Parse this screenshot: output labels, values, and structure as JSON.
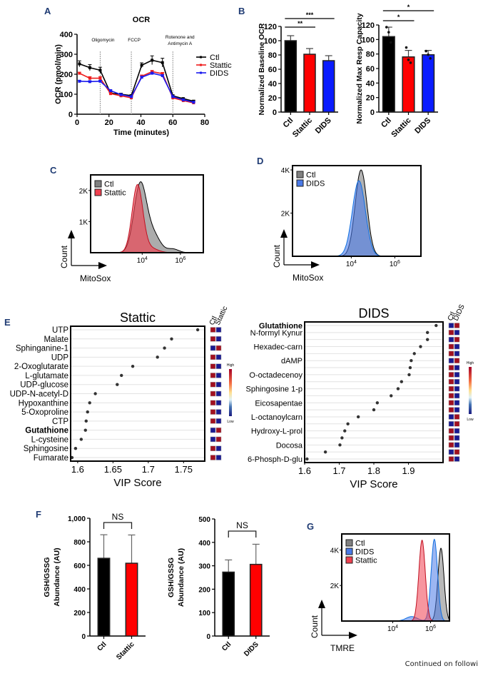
{
  "panels": {
    "A": "A",
    "B": "B",
    "C": "C",
    "D": "D",
    "E": "E",
    "F": "F",
    "G": "G"
  },
  "footer_text": "Continued on followi",
  "colors": {
    "ctl": "#000000",
    "stattic": "#ee1c1c",
    "dids": "#1a1aee",
    "bar_blue": "#0a1cff",
    "bar_red": "#ff0000",
    "hist_gray": "#808080",
    "hist_red": "#f04050",
    "hist_blue": "#4a7ae8",
    "panel_letter": "#1f3b73",
    "heat_high": "#a01020",
    "heat_low": "#1a1a90"
  },
  "chart_data": [
    {
      "id": "A",
      "type": "line",
      "title": "OCR",
      "xlabel": "Time (minutes)",
      "ylabel": "OCR (pmol/min)",
      "xlim": [
        0,
        80
      ],
      "ylim": [
        0,
        400
      ],
      "xticks": [
        "0",
        "20",
        "40",
        "60",
        "80"
      ],
      "yticks": [
        "0",
        "100",
        "200",
        "300",
        "400"
      ],
      "annotations": [
        {
          "x": 14.5,
          "label": "Oligomycin"
        },
        {
          "x": 34,
          "label": "FCCP"
        },
        {
          "x": 60,
          "label": "Rotenone and|Antimycin A"
        }
      ],
      "legend": "right",
      "x": [
        1.5,
        8,
        14.5,
        21,
        27.5,
        34,
        40.5,
        47,
        53.5,
        60,
        66.5,
        73
      ],
      "series": [
        {
          "name": "Ctl",
          "values": [
            252,
            233,
            220,
            105,
            100,
            93,
            245,
            270,
            258,
            92,
            78,
            65
          ],
          "errors": [
            15,
            15,
            15,
            6,
            5,
            5,
            12,
            22,
            22,
            5,
            4,
            5
          ]
        },
        {
          "name": "Stattic",
          "values": [
            205,
            180,
            180,
            103,
            92,
            82,
            190,
            213,
            203,
            82,
            68,
            57
          ],
          "errors": [
            5,
            8,
            8,
            4,
            4,
            4,
            6,
            6,
            6,
            4,
            3,
            3
          ]
        },
        {
          "name": "DIDS",
          "values": [
            165,
            163,
            165,
            118,
            98,
            88,
            185,
            205,
            193,
            88,
            72,
            60
          ],
          "errors": [
            4,
            4,
            4,
            4,
            4,
            4,
            5,
            5,
            5,
            4,
            3,
            3
          ]
        }
      ]
    },
    {
      "id": "B1",
      "type": "bar",
      "ylabel": "Normalized Baseline OCR",
      "ylim": [
        0,
        120
      ],
      "yticks": [
        "0",
        "20",
        "40",
        "60",
        "80",
        "100",
        "120"
      ],
      "categories": [
        "Ctl",
        "Stattic",
        "DIDS"
      ],
      "values": [
        100,
        81,
        72
      ],
      "errors": [
        7,
        8,
        7
      ],
      "significance": [
        {
          "from": 0,
          "to": 1,
          "label": "**"
        },
        {
          "from": 0,
          "to": 2,
          "label": "***"
        }
      ]
    },
    {
      "id": "B2",
      "type": "bar",
      "ylabel": "Normalized Max Resp Capacity",
      "ylim": [
        0,
        120
      ],
      "yticks": [
        "0",
        "20",
        "40",
        "60",
        "80",
        "100",
        "120"
      ],
      "categories": [
        "Ctl",
        "Stattic",
        "DIDS"
      ],
      "values": [
        104,
        76,
        79
      ],
      "errors": [
        13,
        9,
        6
      ],
      "points": [
        [
          117,
          110,
          96
        ],
        [
          89,
          72,
          68
        ],
        [
          84,
          79,
          74
        ]
      ],
      "significance": [
        {
          "from": 0,
          "to": 1,
          "label": "*"
        },
        {
          "from": 0,
          "to": 2,
          "label": "*"
        }
      ]
    },
    {
      "id": "C",
      "type": "area",
      "xlabel": "MitoSox",
      "ylabel": "Count",
      "ylim_label": [
        "1K",
        "2K"
      ],
      "xticks": [
        "10^4",
        "10^6"
      ],
      "legend": "top-left",
      "series": [
        {
          "name": "Ctl",
          "peak_log10": 3.9,
          "peak_count": 2200
        },
        {
          "name": "Stattic",
          "peak_log10": 3.75,
          "peak_count": 2150
        }
      ]
    },
    {
      "id": "D",
      "type": "area",
      "xlabel": "MitoSox",
      "ylabel": "Count",
      "ylim_label": [
        "2K",
        "4K"
      ],
      "xticks": [
        "10^4",
        "10^6"
      ],
      "legend": "top-left",
      "series": [
        {
          "name": "Ctl",
          "peak_log10": 4.45,
          "peak_count": 4000
        },
        {
          "name": "DIDS",
          "peak_log10": 4.35,
          "peak_count": 3500
        }
      ]
    },
    {
      "id": "E1",
      "type": "scatter",
      "title": "Stattic",
      "xlabel": "VIP Score",
      "xlim": [
        1.59,
        1.78
      ],
      "xticks": [
        "1.6",
        "1.65",
        "1.7",
        "1.75"
      ],
      "heatmap_columns": [
        "Ctl",
        "Stattic"
      ],
      "heat_scale": {
        "high": "High",
        "low": "Low"
      },
      "items": [
        {
          "label": "UTP",
          "vip": 1.77,
          "bold": false,
          "heat": [
            "high",
            "low"
          ]
        },
        {
          "label": "Malate",
          "vip": 1.733,
          "bold": false,
          "heat": [
            "high",
            "low"
          ]
        },
        {
          "label": "Sphinganine-1",
          "vip": 1.723,
          "bold": false,
          "heat": [
            "low",
            "high"
          ]
        },
        {
          "label": "UDP",
          "vip": 1.713,
          "bold": false,
          "heat": [
            "high",
            "low"
          ]
        },
        {
          "label": "2-Oxoglutarate",
          "vip": 1.678,
          "bold": false,
          "heat": [
            "high",
            "low"
          ]
        },
        {
          "label": "L-glutamate",
          "vip": 1.662,
          "bold": false,
          "heat": [
            "high",
            "low"
          ]
        },
        {
          "label": "UDP-glucose",
          "vip": 1.656,
          "bold": false,
          "heat": [
            "high",
            "low"
          ]
        },
        {
          "label": "UDP-N-acetyl-D",
          "vip": 1.625,
          "bold": false,
          "heat": [
            "high",
            "low"
          ]
        },
        {
          "label": "Hypoxanthine",
          "vip": 1.617,
          "bold": false,
          "heat": [
            "high",
            "low"
          ]
        },
        {
          "label": "5-Oxoproline",
          "vip": 1.614,
          "bold": false,
          "heat": [
            "high",
            "low"
          ]
        },
        {
          "label": "CTP",
          "vip": 1.612,
          "bold": false,
          "heat": [
            "high",
            "low"
          ]
        },
        {
          "label": "Gutathione",
          "vip": 1.611,
          "bold": true,
          "heat": [
            "low",
            "high"
          ]
        },
        {
          "label": "L-cysteine",
          "vip": 1.605,
          "bold": false,
          "heat": [
            "low",
            "high"
          ]
        },
        {
          "label": "Sphingosine",
          "vip": 1.597,
          "bold": false,
          "heat": [
            "high",
            "low"
          ]
        },
        {
          "label": "Fumarate",
          "vip": 1.592,
          "bold": false,
          "heat": [
            "high",
            "low"
          ]
        }
      ]
    },
    {
      "id": "E2",
      "type": "scatter",
      "title": "DIDS",
      "xlabel": "VIP Score",
      "xlim": [
        1.6,
        2.0
      ],
      "xticks": [
        "1.6",
        "1.7",
        "1.8",
        "1.9"
      ],
      "heatmap_columns": [
        "Ctl",
        "DIDS"
      ],
      "heat_scale": {
        "high": "High",
        "low": "Low"
      },
      "items": [
        {
          "label": "Glutathione",
          "vip": 1.98,
          "bold": true,
          "heat": [
            "low",
            "high"
          ]
        },
        {
          "label": "N-formyl Kynur",
          "vip": 1.955,
          "bold": false,
          "heat": [
            "high",
            "low"
          ]
        },
        {
          "label": "",
          "vip": 1.955,
          "bold": false,
          "heat": [
            "low",
            "high"
          ]
        },
        {
          "label": "Hexadec-carn",
          "vip": 1.935,
          "bold": false,
          "heat": [
            "high",
            "low"
          ]
        },
        {
          "label": "",
          "vip": 1.917,
          "bold": false,
          "heat": [
            "high",
            "low"
          ]
        },
        {
          "label": "dAMP",
          "vip": 1.908,
          "bold": false,
          "heat": [
            "low",
            "high"
          ]
        },
        {
          "label": "",
          "vip": 1.905,
          "bold": false,
          "heat": [
            "high",
            "low"
          ]
        },
        {
          "label": "O-octadecenoy",
          "vip": 1.902,
          "bold": false,
          "heat": [
            "high",
            "low"
          ]
        },
        {
          "label": "",
          "vip": 1.88,
          "bold": false,
          "heat": [
            "high",
            "low"
          ]
        },
        {
          "label": "Sphingosine 1-p",
          "vip": 1.87,
          "bold": false,
          "heat": [
            "high",
            "low"
          ]
        },
        {
          "label": "",
          "vip": 1.85,
          "bold": false,
          "heat": [
            "high",
            "low"
          ]
        },
        {
          "label": "Eicosapentae",
          "vip": 1.81,
          "bold": false,
          "heat": [
            "high",
            "low"
          ]
        },
        {
          "label": "",
          "vip": 1.8,
          "bold": false,
          "heat": [
            "high",
            "low"
          ]
        },
        {
          "label": "L-octanoylcarn",
          "vip": 1.755,
          "bold": false,
          "heat": [
            "low",
            "high"
          ]
        },
        {
          "label": "",
          "vip": 1.725,
          "bold": false,
          "heat": [
            "low",
            "high"
          ]
        },
        {
          "label": "Hydroxy-L-prol",
          "vip": 1.716,
          "bold": false,
          "heat": [
            "high",
            "low"
          ]
        },
        {
          "label": "",
          "vip": 1.708,
          "bold": false,
          "heat": [
            "high",
            "low"
          ]
        },
        {
          "label": "Docosa",
          "vip": 1.702,
          "bold": false,
          "heat": [
            "high",
            "low"
          ]
        },
        {
          "label": "",
          "vip": 1.66,
          "bold": false,
          "heat": [
            "low",
            "high"
          ]
        },
        {
          "label": "6-Phosph-D-glu",
          "vip": 1.607,
          "bold": false,
          "heat": [
            "high",
            "low"
          ]
        }
      ]
    },
    {
      "id": "F1",
      "type": "bar",
      "ylabel": "GSH/GSSG|Abundance (AU)",
      "ylim": [
        0,
        1000
      ],
      "yticks": [
        "0",
        "200",
        "400",
        "600",
        "800",
        "1,000"
      ],
      "categories": [
        "Ctl",
        "Stattic"
      ],
      "values": [
        660,
        618
      ],
      "errors": [
        200,
        240
      ],
      "significance": [
        {
          "from": 0,
          "to": 1,
          "label": "NS"
        }
      ]
    },
    {
      "id": "F2",
      "type": "bar",
      "ylabel": "GSH/GSSG|Abundance (AU)",
      "ylim": [
        0,
        500
      ],
      "yticks": [
        "0",
        "100",
        "200",
        "300",
        "400",
        "500"
      ],
      "categories": [
        "Ctl",
        "DIDS"
      ],
      "values": [
        273,
        306
      ],
      "errors": [
        52,
        86
      ],
      "significance": [
        {
          "from": 0,
          "to": 1,
          "label": "NS"
        }
      ]
    },
    {
      "id": "G",
      "type": "area",
      "xlabel": "TMRE",
      "ylabel": "Count",
      "ylim_label": [
        "2K",
        "4K"
      ],
      "xticks": [
        "10^4",
        "10^6"
      ],
      "legend": "top-left",
      "series": [
        {
          "name": "Ctl",
          "peak_log10": 6.55,
          "peak_count": 4100
        },
        {
          "name": "DIDS",
          "peak_log10": 6.2,
          "peak_count": 4600
        },
        {
          "name": "Stattic",
          "peak_log10": 5.55,
          "peak_count": 4550
        }
      ]
    }
  ]
}
